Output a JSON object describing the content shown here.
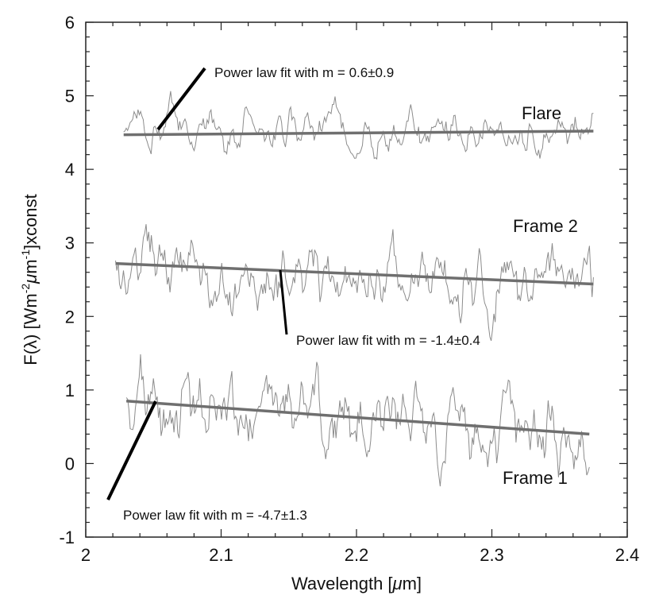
{
  "chart_data": {
    "type": "line",
    "xlabel_prefix": "Wavelength [",
    "xlabel_mu": "μ",
    "xlabel_suffix": "m]",
    "ylabel_pre": "F(λ) [Wm",
    "ylabel_sup1": "-2",
    "ylabel_mu": "μ",
    "ylabel_m": "m",
    "ylabel_sup2": "-1",
    "ylabel_post": "]xconst",
    "xlim": [
      2.0,
      2.4
    ],
    "ylim": [
      -1,
      6
    ],
    "x_ticks": [
      "2",
      "2.1",
      "2.2",
      "2.3",
      "2.4"
    ],
    "y_ticks": [
      "-1",
      "0",
      "1",
      "2",
      "3",
      "4",
      "5",
      "6"
    ],
    "grid": false,
    "series": [
      {
        "name": "Flare",
        "fit_label": "Power law fit with m = 0.6±0.9",
        "baseline": 4.5,
        "x_start": 2.028,
        "x_end": 2.375,
        "amplitude": 0.28,
        "fit": [
          [
            2.028,
            4.47
          ],
          [
            2.375,
            4.52
          ]
        ]
      },
      {
        "name": "Frame 2",
        "fit_label": "Power law fit with m = -1.4±0.4",
        "baseline": 2.6,
        "x_start": 2.022,
        "x_end": 2.375,
        "amplitude": 0.45,
        "fit": [
          [
            2.022,
            2.72
          ],
          [
            2.375,
            2.44
          ]
        ]
      },
      {
        "name": "Frame 1",
        "fit_label": "Power law fit with m = -4.7±1.3",
        "baseline": 0.6,
        "x_start": 2.03,
        "x_end": 2.372,
        "amplitude": 0.5,
        "fit": [
          [
            2.03,
            0.85
          ],
          [
            2.372,
            0.4
          ]
        ]
      }
    ],
    "colors": {
      "spectrum": "#8c8c8c",
      "fit": "#6f6f6f",
      "pointer": "#000000",
      "axis": "#222222"
    }
  }
}
